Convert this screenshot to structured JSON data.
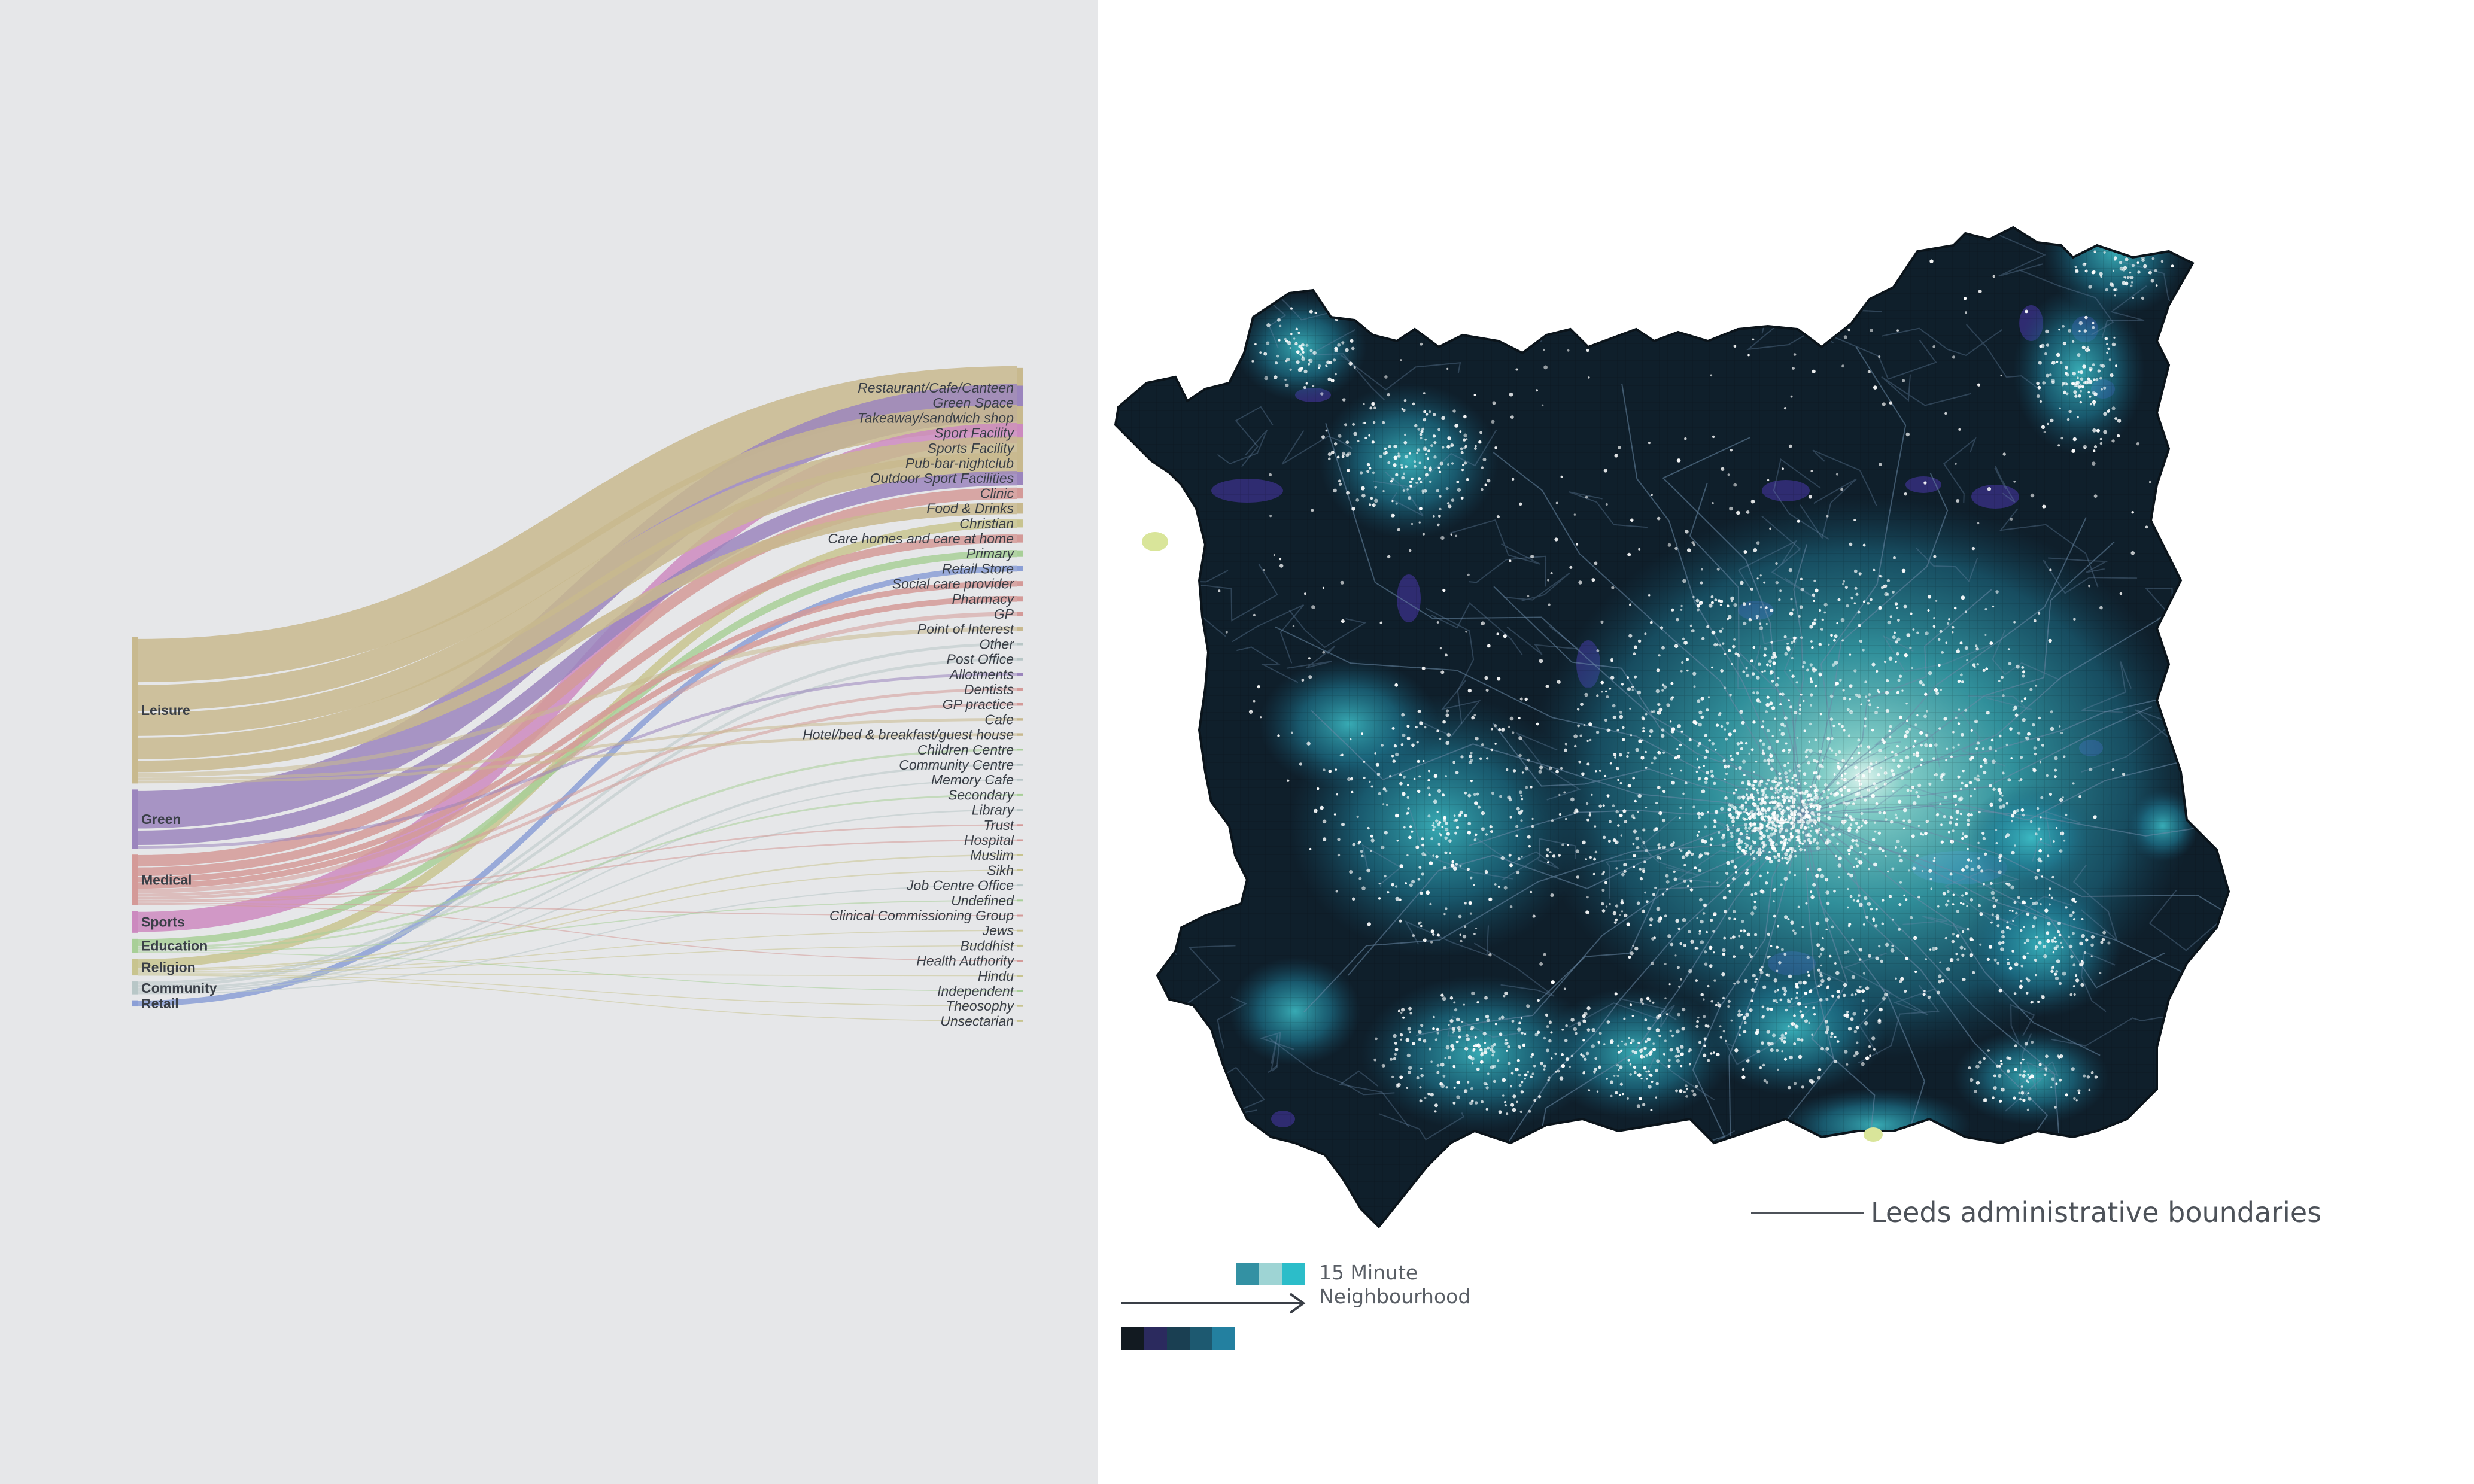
{
  "sankey": {
    "sources": [
      {
        "id": "leisure",
        "label": "Leisure",
        "color": "#c8b98e"
      },
      {
        "id": "green",
        "label": "Green",
        "color": "#9b85bd"
      },
      {
        "id": "medical",
        "label": "Medical",
        "color": "#d49a98"
      },
      {
        "id": "sports",
        "label": "Sports",
        "color": "#cc8abf"
      },
      {
        "id": "education",
        "label": "Education",
        "color": "#a8cf98"
      },
      {
        "id": "religion",
        "label": "Religion",
        "color": "#c8c48f"
      },
      {
        "id": "community",
        "label": "Community",
        "color": "#b8c7c7"
      },
      {
        "id": "retail",
        "label": "Retail",
        "color": "#8b9fd6"
      }
    ],
    "targets": [
      "Restaurant/Cafe/Canteen",
      "Green Space",
      "Takeaway/sandwich shop",
      "Sport Facility",
      "Sports Facility",
      "Pub-bar-nightclub",
      "Outdoor Sport Facilities",
      "Clinic",
      "Food & Drinks",
      "Christian",
      "Care homes and care at home",
      "Primary",
      "Retail Store",
      "Social care provider",
      "Pharmacy",
      "GP",
      "Point of Interest",
      "Other",
      "Post Office",
      "Allotments",
      "Dentists",
      "GP practice",
      "Cafe",
      "Hotel/bed & breakfast/guest house",
      "Children Centre",
      "Community Centre",
      "Memory Cafe",
      "Secondary",
      "Library",
      "Trust",
      "Hospital",
      "Muslim",
      "Sikh",
      "Job Centre Office",
      "Undefined",
      "Clinical Commissioning Group",
      "Jews",
      "Buddhist",
      "Health Authority",
      "Hindu",
      "Independent",
      "Theosophy",
      "Unsectarian"
    ],
    "flows": [
      {
        "s": "leisure",
        "t": "Restaurant/Cafe/Canteen",
        "v": 30
      },
      {
        "s": "green",
        "t": "Green Space",
        "v": 26
      },
      {
        "s": "leisure",
        "t": "Takeaway/sandwich shop",
        "v": 18
      },
      {
        "s": "sports",
        "t": "Sport Facility",
        "v": 14
      },
      {
        "s": "leisure",
        "t": "Sports Facility",
        "v": 16
      },
      {
        "s": "leisure",
        "t": "Pub-bar-nightclub",
        "v": 15
      },
      {
        "s": "green",
        "t": "Outdoor Sport Facilities",
        "v": 10
      },
      {
        "s": "medical",
        "t": "Clinic",
        "v": 8
      },
      {
        "s": "leisure",
        "t": "Food & Drinks",
        "v": 8
      },
      {
        "s": "religion",
        "t": "Christian",
        "v": 6
      },
      {
        "s": "medical",
        "t": "Care homes and care at home",
        "v": 6
      },
      {
        "s": "education",
        "t": "Primary",
        "v": 5
      },
      {
        "s": "retail",
        "t": "Retail Store",
        "v": 4
      },
      {
        "s": "medical",
        "t": "Social care provider",
        "v": 4
      },
      {
        "s": "medical",
        "t": "Pharmacy",
        "v": 4
      },
      {
        "s": "medical",
        "t": "GP",
        "v": 3
      },
      {
        "s": "leisure",
        "t": "Point of Interest",
        "v": 3
      },
      {
        "s": "community",
        "t": "Other",
        "v": 2
      },
      {
        "s": "community",
        "t": "Post Office",
        "v": 2
      },
      {
        "s": "green",
        "t": "Allotments",
        "v": 2
      },
      {
        "s": "medical",
        "t": "Dentists",
        "v": 2
      },
      {
        "s": "medical",
        "t": "GP practice",
        "v": 2
      },
      {
        "s": "leisure",
        "t": "Cafe",
        "v": 2
      },
      {
        "s": "leisure",
        "t": "Hotel/bed & breakfast/guest house",
        "v": 2
      },
      {
        "s": "education",
        "t": "Children Centre",
        "v": 1.5
      },
      {
        "s": "community",
        "t": "Community Centre",
        "v": 1.5
      },
      {
        "s": "community",
        "t": "Memory Cafe",
        "v": 1
      },
      {
        "s": "education",
        "t": "Secondary",
        "v": 1.2
      },
      {
        "s": "community",
        "t": "Library",
        "v": 1
      },
      {
        "s": "medical",
        "t": "Trust",
        "v": 1
      },
      {
        "s": "medical",
        "t": "Hospital",
        "v": 1
      },
      {
        "s": "religion",
        "t": "Muslim",
        "v": 1
      },
      {
        "s": "religion",
        "t": "Sikh",
        "v": 0.8
      },
      {
        "s": "community",
        "t": "Job Centre Office",
        "v": 0.8
      },
      {
        "s": "education",
        "t": "Undefined",
        "v": 0.8
      },
      {
        "s": "medical",
        "t": "Clinical Commissioning Group",
        "v": 0.8
      },
      {
        "s": "religion",
        "t": "Jews",
        "v": 0.6
      },
      {
        "s": "religion",
        "t": "Buddhist",
        "v": 0.6
      },
      {
        "s": "medical",
        "t": "Health Authority",
        "v": 0.6
      },
      {
        "s": "religion",
        "t": "Hindu",
        "v": 0.6
      },
      {
        "s": "education",
        "t": "Independent",
        "v": 0.6
      },
      {
        "s": "religion",
        "t": "Theosophy",
        "v": 0.5
      },
      {
        "s": "religion",
        "t": "Unsectarian",
        "v": 0.5
      }
    ]
  },
  "map": {
    "caption": "Leeds administrative boundaries",
    "legend": {
      "label_line1": "15 Minute",
      "label_line2": "Neighbourhood",
      "upper_swatches": [
        "#3391a3",
        "#9ed4d4",
        "#2cbdc9"
      ],
      "lower_swatches": [
        "#121a21",
        "#2b2a5e",
        "#1a3f52",
        "#1d5970",
        "#2380a0"
      ]
    },
    "colors": {
      "base": "#0f1f2b",
      "mid": "#16506a",
      "high": "#2a9db0",
      "core": "#8fe0d8",
      "purple": "#352f7e",
      "points": "#ffffff"
    }
  }
}
